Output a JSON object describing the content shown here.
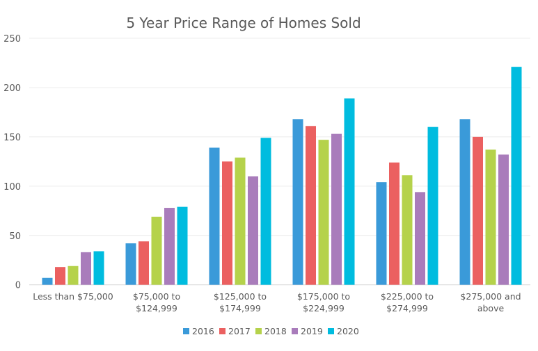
{
  "chart_data": {
    "type": "bar",
    "title": "5 Year Price Range of Homes Sold",
    "xlabel": "",
    "ylabel": "",
    "ylim": [
      0,
      250
    ],
    "yticks": [
      0,
      50,
      100,
      150,
      200,
      250
    ],
    "grid": true,
    "legend_position": "bottom",
    "categories": [
      [
        "Less than $75,000"
      ],
      [
        "$75,000 to",
        "$124,999"
      ],
      [
        "$125,000 to",
        "$174,999"
      ],
      [
        "$175,000 to",
        "$224,999"
      ],
      [
        "$225,000 to",
        "$274,999"
      ],
      [
        "$275,000 and",
        "above"
      ]
    ],
    "series": [
      {
        "name": "2016",
        "color": "#3a9ad9",
        "values": [
          7,
          42,
          139,
          168,
          104,
          168
        ]
      },
      {
        "name": "2017",
        "color": "#eb6060",
        "values": [
          18,
          44,
          125,
          161,
          124,
          150
        ]
      },
      {
        "name": "2018",
        "color": "#b5d24b",
        "values": [
          19,
          69,
          129,
          147,
          111,
          137
        ]
      },
      {
        "name": "2019",
        "color": "#a97cbb",
        "values": [
          33,
          78,
          110,
          153,
          94,
          132
        ]
      },
      {
        "name": "2020",
        "color": "#00bcdf",
        "values": [
          34,
          79,
          149,
          189,
          160,
          221
        ]
      }
    ]
  }
}
